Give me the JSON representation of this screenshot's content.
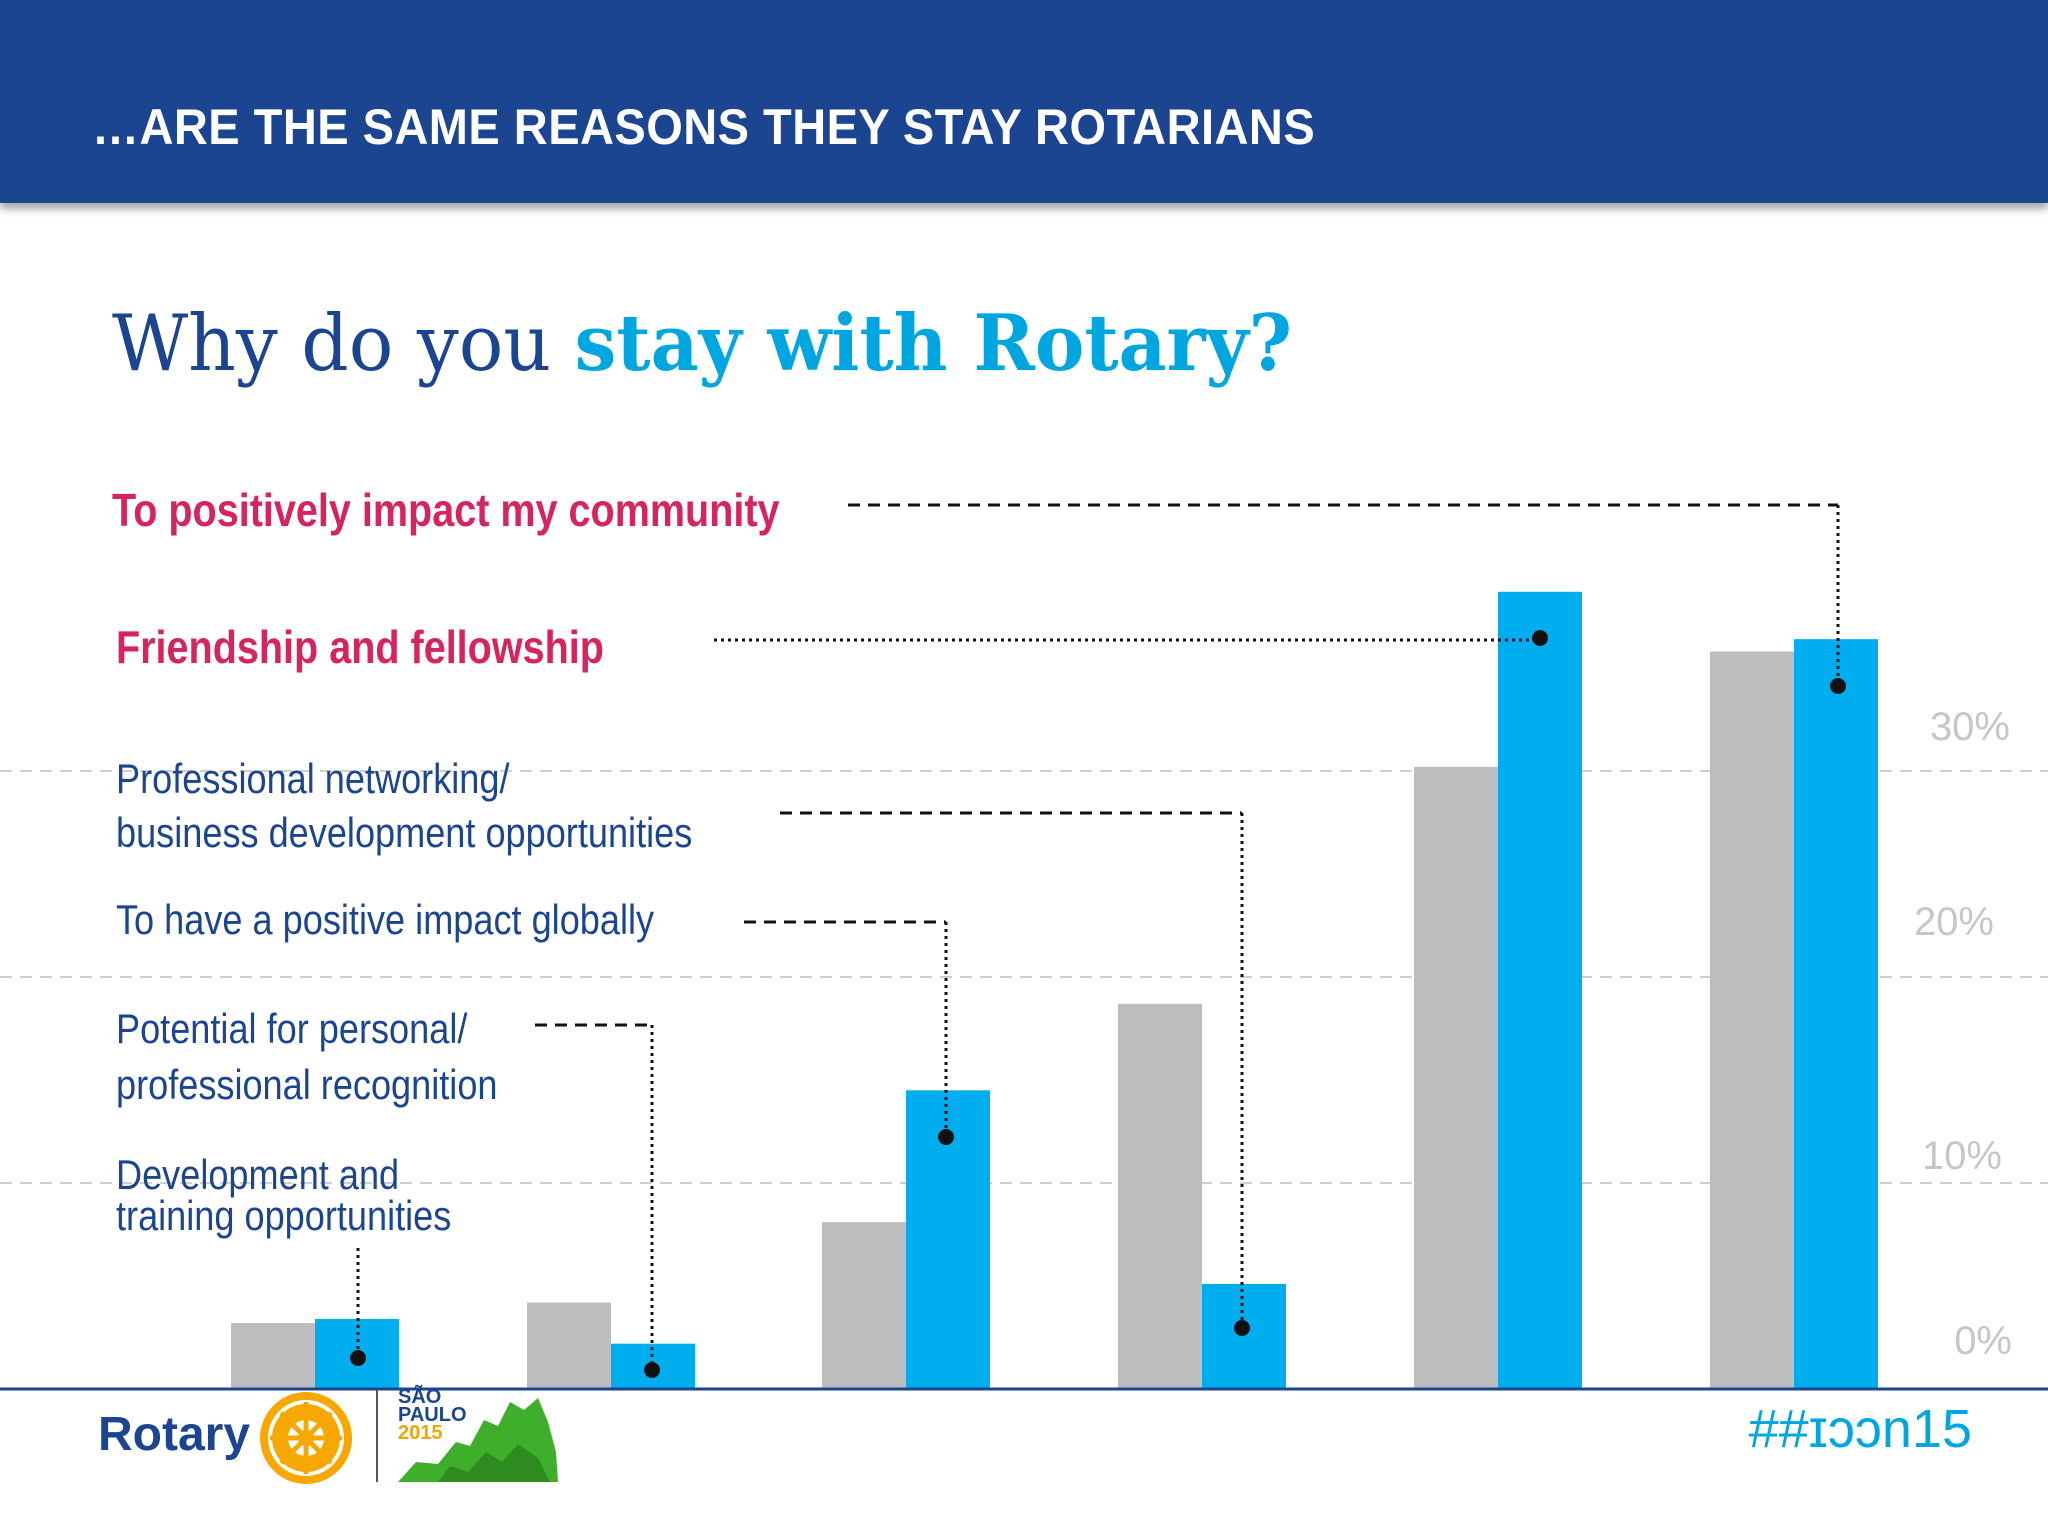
{
  "header": {
    "title": "…ARE THE SAME REASONS THEY STAY ROTARIANS"
  },
  "slide_title": {
    "part1": "Why do you ",
    "part2": "stay with Rotary?"
  },
  "labels": {
    "community": "To positively impact my community",
    "friendship": "Friendship and fellowship",
    "networking_1": "Professional networking/",
    "networking_2": "business development opportunities",
    "global": "To have a positive impact globally",
    "recognition_1": "Potential for personal/",
    "recognition_2": "professional recognition",
    "development_1": "Development and",
    "development_2": "training opportunities"
  },
  "footer": {
    "logo_text": "Rotary",
    "convention_line1": "SÃO",
    "convention_line2": "PAULO",
    "convention_year": "2015",
    "hashtag": "##ɪɔɔn15"
  },
  "colors": {
    "gray_series": "#bdbcbf",
    "blue_series": "#00aeef",
    "accent_pink": "#d6245f",
    "navy": "#1b4590"
  },
  "chart_data": {
    "type": "bar",
    "categories": [
      "Development and training opportunities",
      "Potential for personal/professional recognition",
      "To have a positive impact globally",
      "Professional networking/business development opportunities",
      "Friendship and fellowship",
      "To positively impact my community"
    ],
    "series": [
      {
        "values": [
          3.2,
          4.2,
          8.1,
          18.7,
          30.2,
          35.8
        ],
        "color": "#bdbcbf"
      },
      {
        "values": [
          3.4,
          2.2,
          14.5,
          5.1,
          38.7,
          36.4
        ],
        "color": "#00aeef"
      }
    ],
    "y_ticks": [
      "0%",
      "10%",
      "20%",
      "30%"
    ],
    "ylim": [
      0,
      40
    ],
    "grid": true,
    "axis_side": "right"
  }
}
